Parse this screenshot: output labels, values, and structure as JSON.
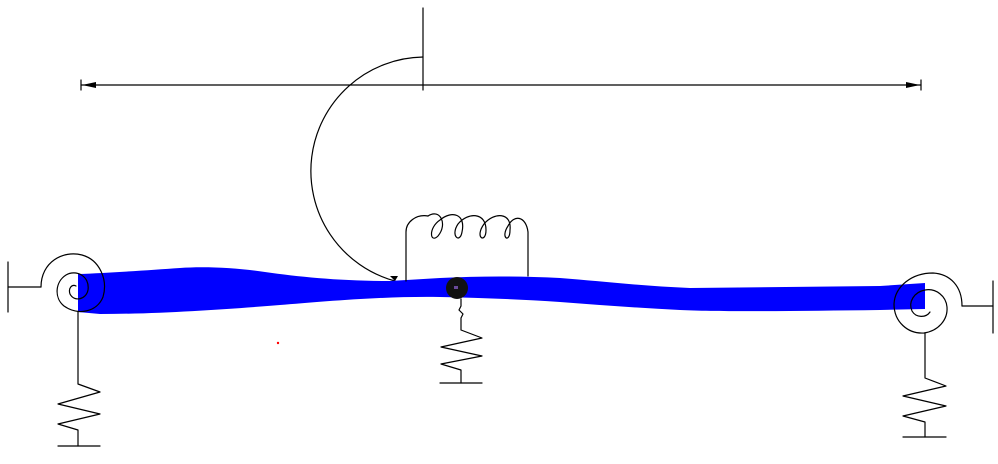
{
  "diagram": {
    "colors": {
      "background": "#ffffff",
      "beam_fill": "#0000ff",
      "line": "#000000",
      "center_mass": "#111111",
      "marker": "#ff0000"
    }
  }
}
